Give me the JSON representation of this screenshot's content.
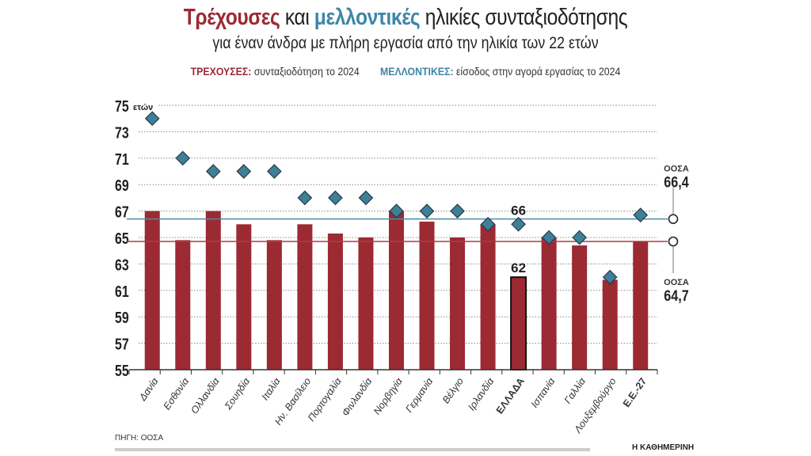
{
  "title": {
    "part1": "Τρέχουσες",
    "part2": "και",
    "part3": "μελλοντικές",
    "part4": "ηλικίες συνταξιοδότησης"
  },
  "subtitle": "για έναν άνδρα με πλήρη εργασία από την ηλικία των 22 ετών",
  "legend": {
    "current_label": "ΤΡΕΧΟΥΣΕΣ:",
    "current_text": "συνταξιοδότηση το 2024",
    "future_label": "ΜΕΛΛΟΝΤΙΚΕΣ:",
    "future_text": "είσοδος στην αγορά εργασίας το 2024"
  },
  "source": "ΠΗΓΗ: ΟΟΣΑ",
  "brand": "Η ΚΑΘΗΜΕΡΙΝΗ",
  "colors": {
    "current": "#9b2a33",
    "future": "#3e7f9a",
    "oecd_current_line": "#b03a45",
    "oecd_future_line": "#4a8ca8"
  },
  "chart_data": {
    "type": "bar",
    "categories": [
      "Δανία",
      "Εσθονία",
      "Ολλανδία",
      "Σουηδία",
      "Ιταλία",
      "Ην. Βασίλειο",
      "Πορτογαλία",
      "Φινλανδία",
      "Νορβηγία",
      "Γερμανία",
      "Βέλγιο",
      "Ιρλανδία",
      "ΕΛΛΑΔΑ",
      "Ισπανία",
      "Γαλλία",
      "Λουξεμβούργο",
      "Ε.Ε.-27"
    ],
    "bold_categories": [
      "ΕΛΛΑΔΑ",
      "Ε.Ε.-27"
    ],
    "series": [
      {
        "name": "ΤΡΕΧΟΥΣΕΣ",
        "type": "bar",
        "values": [
          67,
          64.8,
          67,
          66,
          64.8,
          66,
          65.3,
          65,
          67,
          66.2,
          65,
          66,
          62,
          65,
          64.4,
          61.8,
          64.7
        ]
      },
      {
        "name": "ΜΕΛΛΟΝΤΙΚΕΣ",
        "type": "diamond",
        "values": [
          74,
          71,
          70,
          70,
          70,
          68,
          68,
          68,
          67,
          67,
          67,
          66,
          66,
          65,
          65,
          62,
          66.7
        ]
      }
    ],
    "data_labels": [
      {
        "category": "ΕΛΛΑΔΑ",
        "bar": "62",
        "diamond": "66"
      }
    ],
    "reference_lines": [
      {
        "label": "ΟΟΣΑ",
        "value_text": "66,4",
        "value": 66.4,
        "series": "ΜΕΛΛΟΝΤΙΚΕΣ"
      },
      {
        "label": "ΟΟΣΑ",
        "value_text": "64,7",
        "value": 64.7,
        "series": "ΤΡΕΧΟΥΣΕΣ"
      }
    ],
    "yticks": [
      "55",
      "57",
      "59",
      "61",
      "63",
      "65",
      "67",
      "69",
      "71",
      "73",
      "75"
    ],
    "yunit": "ετών",
    "ylim": [
      55,
      75
    ],
    "grid": true
  }
}
